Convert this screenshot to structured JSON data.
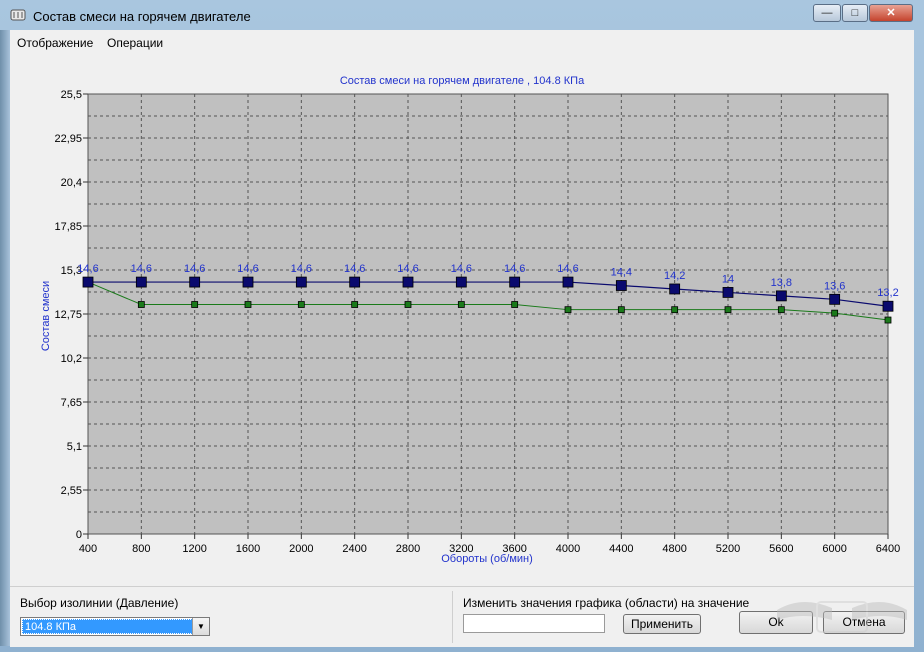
{
  "window": {
    "title": "Состав смеси на горячем двигателе",
    "buttons": {
      "minimize": "—",
      "maximize": "□",
      "close": "✕"
    }
  },
  "menu": {
    "items": [
      "Отображение",
      "Операции"
    ]
  },
  "chart_data": {
    "type": "line",
    "title": "Состав смеси на горячем двигателе , 104.8 КПа",
    "xlabel": "Обороты (об/мин)",
    "ylabel": "Состав смеси",
    "x": [
      400,
      800,
      1200,
      1600,
      2000,
      2400,
      2800,
      3200,
      3600,
      4000,
      4400,
      4800,
      5200,
      5600,
      6000,
      6400
    ],
    "x_ticks": [
      "400",
      "800",
      "1200",
      "1600",
      "2000",
      "2400",
      "2800",
      "3200",
      "3600",
      "4000",
      "4400",
      "4800",
      "5200",
      "5600",
      "6000",
      "6400"
    ],
    "y_ticks": [
      "0",
      "2,55",
      "5,1",
      "7,65",
      "10,2",
      "12,75",
      "15,3",
      "17,85",
      "20,4",
      "22,95",
      "25,5"
    ],
    "y_tick_values": [
      0,
      2.55,
      5.1,
      7.65,
      10.2,
      12.75,
      15.3,
      17.85,
      20.4,
      22.95,
      25.5
    ],
    "ylim": [
      0,
      25.5
    ],
    "grid": true,
    "series": [
      {
        "values": [
          14.6,
          14.6,
          14.6,
          14.6,
          14.6,
          14.6,
          14.6,
          14.6,
          14.6,
          14.6,
          14.4,
          14.2,
          14.0,
          13.8,
          13.6,
          13.2
        ],
        "labels": [
          "14,6",
          "14,6",
          "14,6",
          "14,6",
          "14,6",
          "14,6",
          "14,6",
          "14,6",
          "14,6",
          "14,6",
          "14,4",
          "14,2",
          "14",
          "13,8",
          "13,6",
          "13,2"
        ]
      },
      {
        "values": [
          14.6,
          13.3,
          13.3,
          13.3,
          13.3,
          13.3,
          13.3,
          13.3,
          13.3,
          13.0,
          13.0,
          13.0,
          13.0,
          13.0,
          12.8,
          12.4
        ]
      }
    ],
    "colors": {
      "series1": "#0a0a6e",
      "series2": "#1a7a1a",
      "label": "#2233cc",
      "plot_bg": "#c0c0c0"
    }
  },
  "bottom": {
    "isoline_label": "Выбор изолинии (Давление)",
    "isoline_value": "104.8 КПа",
    "change_label": "Изменить значения графика (области) на значение",
    "change_value": "",
    "apply_button": "Применить",
    "ok_button": "Ok",
    "cancel_button": "Отмена"
  }
}
